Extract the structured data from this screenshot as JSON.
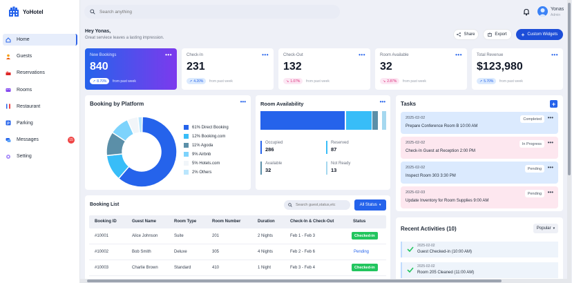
{
  "app": {
    "name": "YoHotel"
  },
  "nav": [
    {
      "label": "Home",
      "icon": "home-icon"
    },
    {
      "label": "Guests",
      "icon": "guests-icon"
    },
    {
      "label": "Reservations",
      "icon": "reservations-icon"
    },
    {
      "label": "Rooms",
      "icon": "rooms-icon"
    },
    {
      "label": "Restaurant",
      "icon": "restaurant-icon"
    },
    {
      "label": "Parking",
      "icon": "parking-icon"
    },
    {
      "label": "Messages",
      "icon": "messages-icon",
      "badge": "15"
    },
    {
      "label": "Setting",
      "icon": "settings-icon"
    }
  ],
  "header": {
    "search_placeholder": "Search anything",
    "user_name": "Yonas",
    "user_role": "Admin"
  },
  "greeting": {
    "title": "Hey Yonas,",
    "subtitle": "Great serviece leaves a lasting impression."
  },
  "actions": {
    "share": "Share",
    "export": "Export",
    "custom": "Custom Widgets"
  },
  "stats": [
    {
      "title": "New Bookings",
      "value": "840",
      "change": "8.70%",
      "note": "from past week"
    },
    {
      "title": "Check-In",
      "value": "231",
      "change": "4.20%",
      "note": "from past week"
    },
    {
      "title": "Check-Out",
      "value": "132",
      "change": "1.07%",
      "note": "from past week"
    },
    {
      "title": "Room Available",
      "value": "32",
      "change": "2.87%",
      "note": "from past week"
    },
    {
      "title": "Total Revenue",
      "value": "$123,980",
      "change": "5.70%",
      "note": "from past week"
    }
  ],
  "platform": {
    "title": "Booking by Platform",
    "legend": [
      "61% Direct Booking",
      "12% Booking.com",
      "11% Agoda",
      "9% Airbnb",
      "5% Hotels.com",
      "2% Others"
    ]
  },
  "chart_data": {
    "type": "pie",
    "categories": [
      "Direct Booking",
      "Booking.com",
      "Agoda",
      "Airbnb",
      "Hotels.com",
      "Others"
    ],
    "values": [
      61,
      12,
      11,
      9,
      5,
      2
    ],
    "colors": [
      "#2563eb",
      "#38bdf8",
      "#5b8fa8",
      "#7dd3fc",
      "#f1f5f9",
      "#bae6fd"
    ],
    "title": "Booking by Platform"
  },
  "room_availability": {
    "title": "Room Availability",
    "items": [
      {
        "label": "Occupied",
        "value": "286",
        "color": "#2563eb"
      },
      {
        "label": "Reserved",
        "value": "87",
        "color": "#38bdf8"
      },
      {
        "label": "Available",
        "value": "32",
        "color": "#5b8fa8"
      },
      {
        "label": "Not Ready",
        "value": "13",
        "color": "#a5d8ef"
      }
    ]
  },
  "tasks": {
    "title": "Tasks",
    "items": [
      {
        "date": "2025-02-02",
        "text": "Prepare Conference Room B 10:00 AM",
        "status": "Completed",
        "bg": "#dbeafe"
      },
      {
        "date": "2025-02-02",
        "text": "Check-In Guest at Reception 2:00 PM",
        "status": "In Progress",
        "bg": "#fde7ef"
      },
      {
        "date": "2025-02-02",
        "text": "Inspect Room 303 3:30 PM",
        "status": "Pending",
        "bg": "#dbeafe"
      },
      {
        "date": "2025-02-03",
        "text": "Update Inventory for Room Supplies 9:00 AM",
        "status": "Pending",
        "bg": "#fde7ef"
      }
    ]
  },
  "booking_list": {
    "title": "Booking List",
    "search_placeholder": "Search guest,status,etc",
    "filter": "All Status",
    "headers": [
      "Booking ID",
      "Guest Name",
      "Room Type",
      "Room Number",
      "Duration",
      "Check-In & Check-Out",
      "Status"
    ],
    "rows": [
      {
        "id": "#10001",
        "guest": "Alice Johnson",
        "type": "Suite",
        "room": "201",
        "duration": "2 Nights",
        "dates": "Feb 1 - Feb 3",
        "status": "Checked-in"
      },
      {
        "id": "#10002",
        "guest": "Bob Smith",
        "type": "Deluxe",
        "room": "305",
        "duration": "4 Nights",
        "dates": "Feb 2 - Feb 6",
        "status": "Pending"
      },
      {
        "id": "#10003",
        "guest": "Charlie Brown",
        "type": "Standard",
        "room": "410",
        "duration": "1 Night",
        "dates": "Feb 3 - Feb 4",
        "status": "Checked-in"
      }
    ]
  },
  "activities": {
    "title": "Recent Activities (10)",
    "sort": "Popular",
    "items": [
      {
        "date": "2025-02-02",
        "text": "Guest Checked-in (10:00 AM)"
      },
      {
        "date": "2025-02-02",
        "text": "Room 205 Cleaned (11:00 AM)"
      }
    ]
  },
  "colors": {
    "accent": "#2563eb",
    "success": "#22c55e",
    "danger": "#ef4444"
  }
}
